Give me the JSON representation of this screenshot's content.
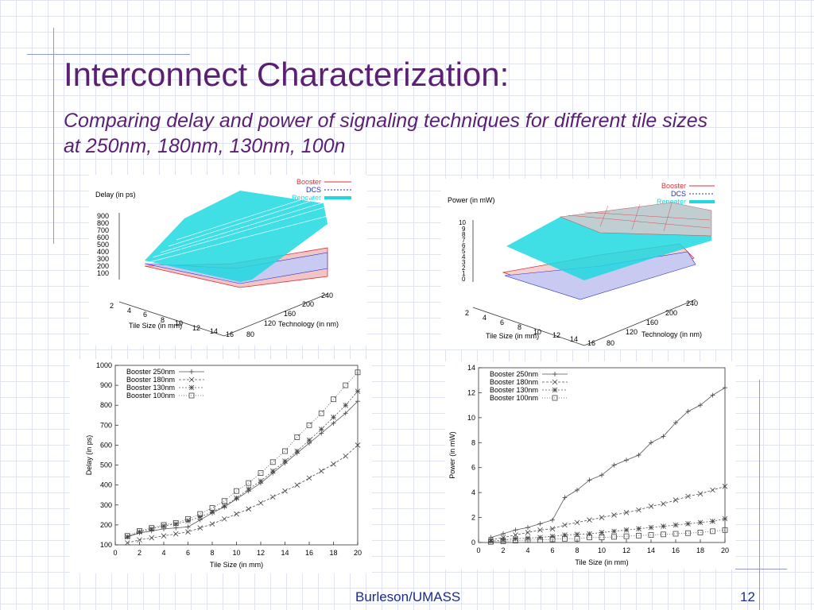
{
  "slide": {
    "title": "Interconnect Characterization:",
    "subtitle": "Comparing delay and power of signaling techniques for different tile sizes at 250nm, 180nm, 130nm, 100n",
    "footer": "Burleson/UMASS",
    "page_number": "12"
  },
  "colors": {
    "title": "#5b1f73",
    "booster": "#d9333a",
    "dcs": "#2b2fc4",
    "repeater": "#1fd8e0",
    "grid": "#dfe3f4"
  },
  "chart_data": [
    {
      "type": "surface",
      "title": "",
      "zlabel": "Delay (in ps)",
      "xlabel": "Tile Size (in mm)",
      "ylabel": "Technology (in nm)",
      "x_ticks": [
        "2",
        "4",
        "6",
        "8",
        "10",
        "12",
        "14",
        "16"
      ],
      "y_ticks": [
        "80",
        "120",
        "160",
        "200",
        "240"
      ],
      "z_ticks": [
        "100",
        "200",
        "300",
        "400",
        "500",
        "600",
        "700",
        "800",
        "900"
      ],
      "legend": [
        "Booster",
        "DCS",
        "Repeater"
      ]
    },
    {
      "type": "surface",
      "title": "",
      "zlabel": "Power (in mW)",
      "xlabel": "Tile Size (in mm)",
      "ylabel": "Technology (in nm)",
      "x_ticks": [
        "2",
        "4",
        "6",
        "8",
        "10",
        "12",
        "14",
        "16"
      ],
      "y_ticks": [
        "80",
        "120",
        "160",
        "200",
        "240"
      ],
      "z_ticks": [
        "0",
        "1",
        "2",
        "3",
        "4",
        "5",
        "6",
        "7",
        "8",
        "9",
        "10"
      ],
      "legend": [
        "Booster",
        "DCS",
        "Repeater"
      ]
    },
    {
      "type": "line",
      "xlabel": "Tile Size (in mm)",
      "ylabel": "Delay (in ps)",
      "xlim": [
        0,
        20
      ],
      "ylim": [
        100,
        1000
      ],
      "x_ticks": [
        0,
        2,
        4,
        6,
        8,
        10,
        12,
        14,
        16,
        18,
        20
      ],
      "y_ticks": [
        100,
        200,
        300,
        400,
        500,
        600,
        700,
        800,
        900,
        1000
      ],
      "x": [
        1,
        2,
        3,
        4,
        5,
        6,
        7,
        8,
        9,
        10,
        11,
        12,
        13,
        14,
        15,
        16,
        17,
        18,
        19,
        20
      ],
      "series": [
        {
          "name": "Booster 250nm",
          "marker": "plus",
          "values": [
            140,
            160,
            170,
            180,
            185,
            190,
            225,
            260,
            290,
            330,
            370,
            410,
            460,
            510,
            560,
            610,
            660,
            710,
            760,
            820
          ]
        },
        {
          "name": "Booster 180nm",
          "marker": "x",
          "values": [
            110,
            125,
            135,
            145,
            155,
            165,
            185,
            205,
            230,
            255,
            280,
            310,
            340,
            370,
            400,
            435,
            470,
            505,
            545,
            600
          ]
        },
        {
          "name": "Booster 130nm",
          "marker": "star",
          "values": [
            140,
            165,
            180,
            195,
            205,
            220,
            240,
            265,
            295,
            335,
            380,
            420,
            470,
            520,
            570,
            625,
            680,
            740,
            800,
            870
          ]
        },
        {
          "name": "Booster 100nm",
          "marker": "square",
          "values": [
            145,
            170,
            185,
            200,
            210,
            230,
            255,
            285,
            320,
            370,
            410,
            460,
            515,
            570,
            640,
            700,
            760,
            830,
            900,
            965
          ]
        }
      ]
    },
    {
      "type": "line",
      "xlabel": "Tile Size (in mm)",
      "ylabel": "Power (in mW)",
      "xlim": [
        0,
        20
      ],
      "ylim": [
        0,
        14
      ],
      "x_ticks": [
        0,
        2,
        4,
        6,
        8,
        10,
        12,
        14,
        16,
        18,
        20
      ],
      "y_ticks": [
        0,
        2,
        4,
        6,
        8,
        10,
        12,
        14
      ],
      "x": [
        1,
        2,
        3,
        4,
        5,
        6,
        7,
        8,
        9,
        10,
        11,
        12,
        13,
        14,
        15,
        16,
        17,
        18,
        19,
        20
      ],
      "series": [
        {
          "name": "Booster 250nm",
          "marker": "plus",
          "values": [
            0.4,
            0.7,
            1.0,
            1.2,
            1.5,
            1.8,
            3.6,
            4.2,
            5.0,
            5.4,
            6.2,
            6.6,
            7.0,
            8.0,
            8.5,
            9.6,
            10.5,
            11.0,
            11.8,
            12.4
          ]
        },
        {
          "name": "Booster 180nm",
          "marker": "x",
          "values": [
            0.2,
            0.4,
            0.6,
            0.8,
            1.0,
            1.1,
            1.4,
            1.6,
            1.8,
            2.0,
            2.2,
            2.4,
            2.6,
            2.9,
            3.1,
            3.4,
            3.7,
            3.9,
            4.2,
            4.5
          ]
        },
        {
          "name": "Booster 130nm",
          "marker": "star",
          "values": [
            0.1,
            0.2,
            0.3,
            0.35,
            0.4,
            0.5,
            0.6,
            0.65,
            0.7,
            0.8,
            0.9,
            1.0,
            1.1,
            1.2,
            1.3,
            1.4,
            1.5,
            1.6,
            1.7,
            1.9
          ]
        },
        {
          "name": "Booster 100nm",
          "marker": "square",
          "values": [
            0.05,
            0.1,
            0.15,
            0.2,
            0.2,
            0.25,
            0.3,
            0.3,
            0.4,
            0.4,
            0.45,
            0.5,
            0.55,
            0.6,
            0.65,
            0.7,
            0.75,
            0.8,
            0.9,
            1.0
          ]
        }
      ]
    }
  ]
}
